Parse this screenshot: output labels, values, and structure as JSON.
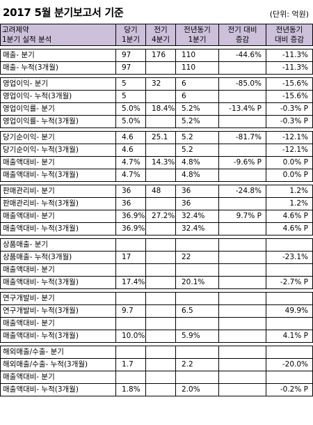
{
  "header": {
    "title": "2017 5월 분기보고서 기준",
    "unit": "(단위: 억원)"
  },
  "columns": {
    "company": "고려제약",
    "subtitle": "1분기 실적 분석",
    "cur_l1": "당기",
    "cur_l2": "1분기",
    "prev_l1": "전기",
    "prev_l2": "4분기",
    "yoy_l1": "전년동기",
    "yoy_l2": "1분기",
    "qoq_l1": "전기 대비",
    "qoq_l2": "증감",
    "yoychg_l1": "전년동기",
    "yoychg_l2": "대비 증감"
  },
  "groups": [
    [
      {
        "label": "매출- 분기",
        "cur": "97",
        "prev": "176",
        "yoy": "110",
        "qoq": "-44.6%",
        "yoychg": "-11.3%"
      },
      {
        "label": "매출- 누적(3개월)",
        "cur": "97",
        "prev": "",
        "yoy": "110",
        "qoq": "",
        "yoychg": "-11.3%"
      }
    ],
    [
      {
        "label": "영업이익- 분기",
        "cur": "5",
        "prev": "32",
        "yoy": "6",
        "qoq": "-85.0%",
        "yoychg": "-15.6%"
      },
      {
        "label": "영업이익- 누적(3개월)",
        "cur": "5",
        "prev": "",
        "yoy": "6",
        "qoq": "",
        "yoychg": "-15.6%"
      },
      {
        "label": "영업이익률- 분기",
        "cur": "5.0%",
        "prev": "18.4%",
        "yoy": "5.2%",
        "qoq": "-13.4% P",
        "yoychg": "-0.3% P"
      },
      {
        "label": "영업이익률- 누적(3개월)",
        "cur": "5.0%",
        "prev": "",
        "yoy": "5.2%",
        "qoq": "",
        "yoychg": "-0.3% P"
      }
    ],
    [
      {
        "label": "당기순이익- 분기",
        "cur": "4.6",
        "prev": "25.1",
        "yoy": "5.2",
        "qoq": "-81.7%",
        "yoychg": "-12.1%"
      },
      {
        "label": "당기순이익- 누적(3개월)",
        "cur": "4.6",
        "prev": "",
        "yoy": "5.2",
        "qoq": "",
        "yoychg": "-12.1%"
      },
      {
        "label": "매출액대비- 분기",
        "cur": "4.7%",
        "prev": "14.3%",
        "yoy": "4.8%",
        "qoq": "-9.6% P",
        "yoychg": "0.0% P"
      },
      {
        "label": "매출액대비- 누적(3개월)",
        "cur": "4.7%",
        "prev": "",
        "yoy": "4.8%",
        "qoq": "",
        "yoychg": "0.0% P"
      }
    ],
    [
      {
        "label": "판매관리비- 분기",
        "cur": "36",
        "prev": "48",
        "yoy": "36",
        "qoq": "-24.8%",
        "yoychg": "1.2%"
      },
      {
        "label": "판매관리비- 누적(3개월)",
        "cur": "36",
        "prev": "",
        "yoy": "36",
        "qoq": "",
        "yoychg": "1.2%"
      },
      {
        "label": "매출액대비- 분기",
        "cur": "36.9%",
        "prev": "27.2%",
        "yoy": "32.4%",
        "qoq": "9.7% P",
        "yoychg": "4.6% P"
      },
      {
        "label": "매출액대비- 누적(3개월)",
        "cur": "36.9%",
        "prev": "",
        "yoy": "32.4%",
        "qoq": "",
        "yoychg": "4.6% P"
      }
    ],
    [
      {
        "label": "상품매출- 분기",
        "cur": "",
        "prev": "",
        "yoy": "",
        "qoq": "",
        "yoychg": ""
      },
      {
        "label": "상품매출- 누적(3개월)",
        "cur": "17",
        "prev": "",
        "yoy": "22",
        "qoq": "",
        "yoychg": "-23.1%"
      },
      {
        "label": "매출액대비- 분기",
        "cur": "",
        "prev": "",
        "yoy": "",
        "qoq": "",
        "yoychg": ""
      },
      {
        "label": "매출액대비- 누적(3개월)",
        "cur": "17.4%",
        "prev": "",
        "yoy": "20.1%",
        "qoq": "",
        "yoychg": "-2.7% P"
      }
    ],
    [
      {
        "label": "연구개발비- 분기",
        "cur": "",
        "prev": "",
        "yoy": "",
        "qoq": "",
        "yoychg": ""
      },
      {
        "label": "연구개발비- 누적(3개월)",
        "cur": "9.7",
        "prev": "",
        "yoy": "6.5",
        "qoq": "",
        "yoychg": "49.9%"
      },
      {
        "label": "매출액대비- 분기",
        "cur": "",
        "prev": "",
        "yoy": "",
        "qoq": "",
        "yoychg": ""
      },
      {
        "label": "매출액대비- 누적(3개월)",
        "cur": "10.0%",
        "prev": "",
        "yoy": "5.9%",
        "qoq": "",
        "yoychg": "4.1% P"
      }
    ],
    [
      {
        "label": "해외매출/수출- 분기",
        "cur": "",
        "prev": "",
        "yoy": "",
        "qoq": "",
        "yoychg": ""
      },
      {
        "label": "해외매출/수출- 누적(3개월)",
        "cur": "1.7",
        "prev": "",
        "yoy": "2.2",
        "qoq": "",
        "yoychg": "-20.0%"
      },
      {
        "label": "매출액대비- 분기",
        "cur": "",
        "prev": "",
        "yoy": "",
        "qoq": "",
        "yoychg": ""
      },
      {
        "label": "매출액대비- 누적(3개월)",
        "cur": "1.8%",
        "prev": "",
        "yoy": "2.0%",
        "qoq": "",
        "yoychg": "-0.2% P"
      }
    ]
  ]
}
